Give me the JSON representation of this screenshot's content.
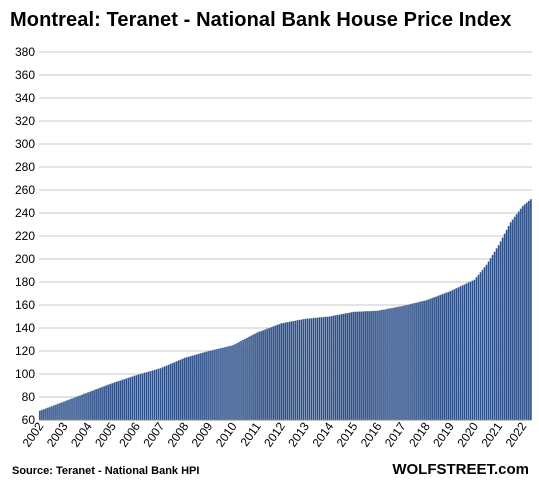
{
  "chart_data": {
    "type": "bar",
    "title": "Montreal: Teranet - National Bank House Price Index",
    "xlabel": "",
    "ylabel": "",
    "ylim": [
      60,
      380
    ],
    "ytick_labels": [
      "60",
      "80",
      "100",
      "120",
      "140",
      "160",
      "180",
      "200",
      "220",
      "240",
      "260",
      "280",
      "300",
      "320",
      "340",
      "360",
      "380"
    ],
    "xtick_labels": [
      "2002",
      "2003",
      "2004",
      "2005",
      "2006",
      "2007",
      "2008",
      "2009",
      "2010",
      "2011",
      "2012",
      "2013",
      "2014",
      "2015",
      "2016",
      "2017",
      "2018",
      "2019",
      "2020",
      "2021",
      "2022"
    ],
    "grid": true,
    "frequency": "monthly",
    "start": "2002-01",
    "end": "2022-05",
    "anchors": [
      {
        "date": "2002-01",
        "value": 68
      },
      {
        "date": "2003-01",
        "value": 76
      },
      {
        "date": "2004-01",
        "value": 84
      },
      {
        "date": "2005-01",
        "value": 92
      },
      {
        "date": "2006-01",
        "value": 99
      },
      {
        "date": "2007-01",
        "value": 105
      },
      {
        "date": "2008-01",
        "value": 114
      },
      {
        "date": "2009-01",
        "value": 120
      },
      {
        "date": "2010-01",
        "value": 125
      },
      {
        "date": "2011-01",
        "value": 136
      },
      {
        "date": "2012-01",
        "value": 144
      },
      {
        "date": "2013-01",
        "value": 148
      },
      {
        "date": "2014-01",
        "value": 150
      },
      {
        "date": "2015-01",
        "value": 154
      },
      {
        "date": "2016-01",
        "value": 155
      },
      {
        "date": "2017-01",
        "value": 159
      },
      {
        "date": "2018-01",
        "value": 164
      },
      {
        "date": "2019-01",
        "value": 172
      },
      {
        "date": "2020-01",
        "value": 182
      },
      {
        "date": "2020-07",
        "value": 195
      },
      {
        "date": "2021-01",
        "value": 212
      },
      {
        "date": "2021-07",
        "value": 232
      },
      {
        "date": "2022-01",
        "value": 246
      },
      {
        "date": "2022-05",
        "value": 252
      }
    ]
  },
  "footer": {
    "source": "Source: Teranet - National Bank HPI",
    "brand": "WOLFSTREET.com"
  },
  "colors": {
    "bar": "#2e4f86",
    "bar_edge": "#8fa6c9",
    "grid": "#c8c8c8"
  }
}
